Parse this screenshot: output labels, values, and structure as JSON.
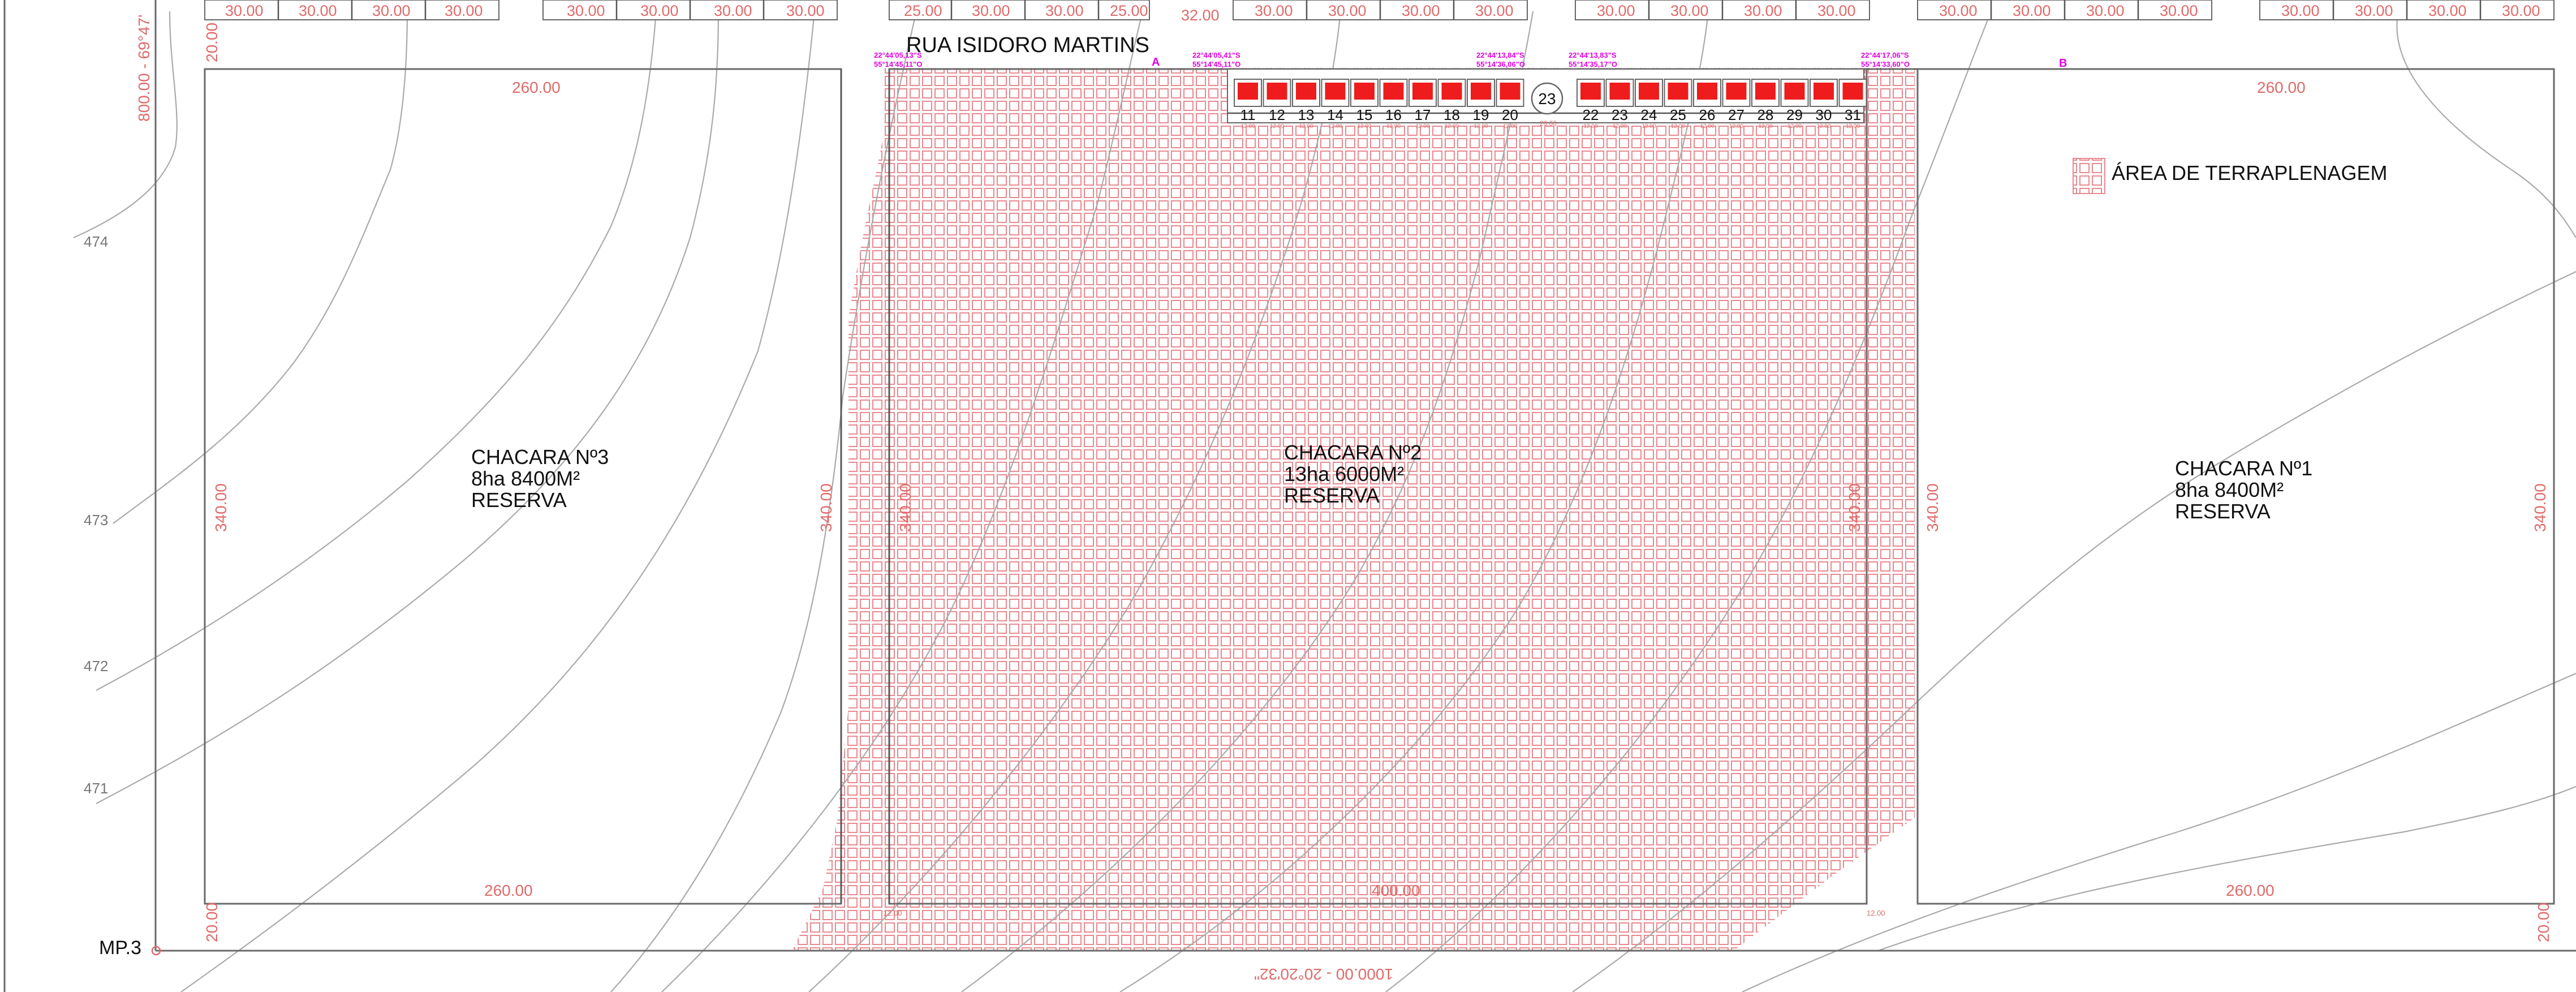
{
  "street_name": "RUA ISIDORO MARTINS",
  "legend": {
    "label": "ÁREA DE TERRAPLENAGEM",
    "hatch_color": "#e8898f"
  },
  "colors": {
    "dimension": "#e06a6a",
    "coordinates": "#e000e0",
    "lot_fill": "#ee1c1c",
    "lines": "#6a6a6a",
    "contours": "#aaaaaa"
  },
  "chacaras": {
    "c3": {
      "name": "CHACARA Nº3",
      "area": "8ha 8400M²",
      "status": "RESERVA",
      "dim_top": "260.00",
      "dim_bottom": "260.00",
      "dim_left": "340.00",
      "dim_right": "340.00"
    },
    "c2": {
      "name": "CHACARA Nº2",
      "area": "13ha 6000M²",
      "status": "RESERVA",
      "dim_bottom": "400.00",
      "dim_left": "340.00",
      "dim_right": "340.00"
    },
    "c1": {
      "name": "CHACARA Nº1",
      "area": "8ha 8400M²",
      "status": "RESERVA",
      "dim_top": "260.00",
      "dim_bottom": "260.00",
      "dim_left": "340.00",
      "dim_right": "340.00"
    }
  },
  "lots_left": [
    "11",
    "12",
    "13",
    "14",
    "15",
    "16",
    "17",
    "18",
    "19",
    "20"
  ],
  "lots_right": [
    "22",
    "23",
    "24",
    "25",
    "26",
    "27",
    "28",
    "29",
    "30",
    "31"
  ],
  "lot_circle": "23",
  "contour_labels": [
    "474",
    "473",
    "472",
    "471"
  ],
  "survey_point": "MP.3",
  "markers": {
    "a": "A",
    "b": "B"
  },
  "boundary": {
    "left": "800.00 - 69°47'",
    "bottom": "1000.00 - 20°20'32\""
  },
  "side_dims": {
    "top_left": "20.00",
    "bottom_left": "20.00",
    "bottom_right": "20.00"
  },
  "top_strip": {
    "g1": [
      "30.00",
      "30.00",
      "30.00",
      "30.00"
    ],
    "g2": [
      "30.00",
      "30.00",
      "30.00",
      "30.00"
    ],
    "g3": [
      "25.00",
      "30.00",
      "30.00",
      "25.00"
    ],
    "g4_lead": "32.00",
    "g4": [
      "30.00",
      "30.00",
      "30.00",
      "30.00"
    ],
    "g5": [
      "30.00",
      "30.00",
      "30.00",
      "30.00"
    ],
    "g6": [
      "30.00",
      "30.00",
      "30.00",
      "30.00"
    ],
    "g7": [
      "30.00",
      "30.00",
      "30.00",
      "30.00"
    ]
  },
  "coordinates": {
    "k1": [
      "22°44'05,13\"S",
      "55°14'45,11\"O"
    ],
    "k2": [
      "22°44'05,41\"S",
      "55°14'45,11\"O"
    ],
    "k3": [
      "22°44'13,84\"S",
      "55°14'36,06\"O"
    ],
    "k4": [
      "22°44'13,83\"S",
      "55°14'35,17\"O"
    ],
    "k5": [
      "22°44'17,06\"S",
      "55°14'33,60\"O"
    ]
  },
  "lot_dims": {
    "width": "12.00",
    "road": "20.00",
    "small_corner": "12.00"
  }
}
